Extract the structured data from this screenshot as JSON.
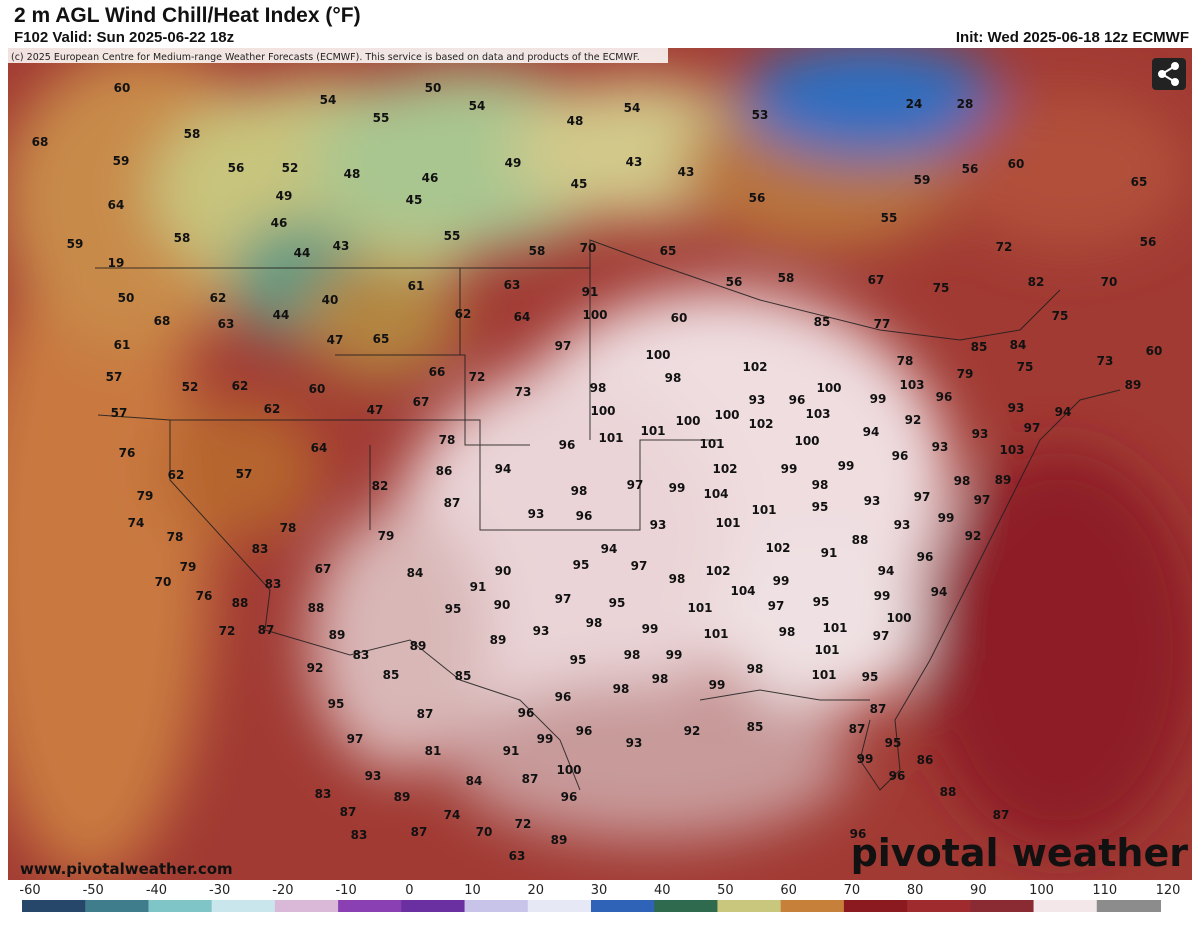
{
  "header": {
    "title": "2 m AGL Wind Chill/Heat Index (°F)",
    "valid": "F102 Valid: Sun 2025-06-22 18z",
    "init": "Init: Wed 2025-06-18 12z ECMWF"
  },
  "copyright": "(c) 2025 European Centre for Medium-range Weather Forecasts (ECMWF). This service is based on data and products of the ECMWF.",
  "website": "www.pivotalweather.com",
  "logo": "pivotal weather",
  "map_labels": [
    60,
    54,
    50,
    54,
    55,
    48,
    54,
    53,
    24,
    28,
    58,
    68,
    59,
    56,
    52,
    48,
    46,
    49,
    43,
    43,
    60,
    56,
    65,
    59,
    64,
    49,
    45,
    45,
    56,
    55,
    46,
    58,
    55,
    58,
    70,
    65,
    72,
    56,
    59,
    19,
    44,
    43,
    50,
    62,
    61,
    63,
    91,
    56,
    58,
    67,
    75,
    82,
    70,
    40,
    68,
    63,
    44,
    62,
    64,
    100,
    60,
    85,
    77,
    75,
    61,
    47,
    65,
    97,
    100,
    85,
    84,
    73,
    60,
    57,
    52,
    62,
    60,
    66,
    72,
    98,
    98,
    102,
    78,
    79,
    75,
    89,
    57,
    62,
    47,
    67,
    73,
    100,
    93,
    96,
    100,
    103,
    99,
    96,
    93,
    94,
    76,
    64,
    78,
    96,
    101,
    101,
    100,
    100,
    102,
    103,
    94,
    92,
    93,
    97,
    62,
    57,
    86,
    94,
    101,
    100,
    99,
    96,
    93,
    103,
    79,
    82,
    87,
    98,
    97,
    99,
    102,
    104,
    99,
    98,
    93,
    97,
    98,
    97,
    89,
    74,
    78,
    79,
    93,
    96,
    93,
    101,
    101,
    95,
    93,
    99,
    92,
    78,
    83,
    94,
    102,
    91,
    88,
    79,
    67,
    84,
    91,
    90,
    95,
    97,
    98,
    102,
    99,
    96,
    94,
    70,
    76,
    83,
    88,
    88,
    95,
    90,
    97,
    95,
    104,
    97,
    95,
    99,
    94,
    72,
    87,
    89,
    89,
    89,
    93,
    98,
    99,
    101,
    101,
    98,
    101,
    100,
    97,
    83,
    92,
    95,
    98,
    99,
    98,
    101,
    85,
    85,
    98,
    98,
    99,
    101,
    95,
    95,
    96,
    96,
    87,
    87,
    97,
    99,
    96,
    93,
    92,
    85,
    87,
    95,
    81,
    91,
    99,
    86,
    93,
    100,
    96,
    84,
    87,
    83,
    89,
    96,
    88,
    87,
    74,
    72,
    87,
    87,
    70,
    89,
    83,
    96,
    63
  ],
  "colorbar": {
    "ticks": [
      -60,
      -50,
      -40,
      -30,
      -20,
      -10,
      0,
      10,
      20,
      30,
      40,
      50,
      60,
      70,
      80,
      90,
      100,
      110,
      120
    ],
    "colors": [
      "#27476a",
      "#3f7c8c",
      "#7fc4c6",
      "#c9e6ec",
      "#d9b8d8",
      "#8a3fb3",
      "#6a2fa0",
      "#c7c3e9",
      "#e6e8f5",
      "#2e63b8",
      "#2f6a4e",
      "#c9c77d",
      "#c6803a",
      "#8a1a1f",
      "#9f2b2f",
      "#8a2b33",
      "#f3e7ea",
      "#8c8c8c",
      "#3e3e3e"
    ]
  }
}
